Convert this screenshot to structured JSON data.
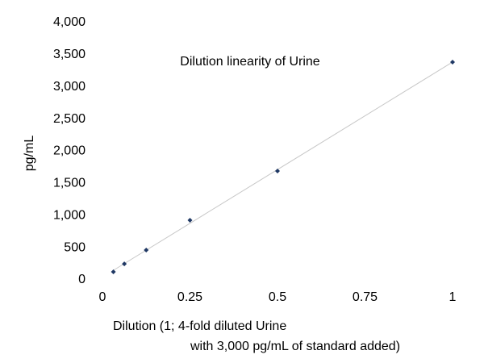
{
  "chart_data": {
    "type": "scatter",
    "title": "Dilution linearity of Urine",
    "xlabel": [
      "Dilution (1; 4-fold diluted Urine",
      "with 3,000 pg/mL of standard added)"
    ],
    "ylabel": "pg/mL",
    "x": [
      0.03125,
      0.0625,
      0.125,
      0.25,
      0.5,
      1
    ],
    "values": [
      125,
      250,
      464,
      928,
      1693,
      3386
    ],
    "color": "#1f3864",
    "trendline": "linear",
    "trendline_color": "#c8c8c8",
    "xlim": [
      0,
      1
    ],
    "xticks": [
      0,
      0.25,
      0.5,
      0.75,
      1
    ],
    "ylim": [
      0,
      4000
    ],
    "yticks": [
      0,
      500,
      {
        "value": 1000,
        "label": "1,000"
      },
      {
        "value": 1500,
        "label": "1,500"
      },
      {
        "value": 2000,
        "label": "2,000"
      },
      {
        "value": 2500,
        "label": "2,500"
      },
      {
        "value": 3000,
        "label": "3,000"
      },
      {
        "value": 3500,
        "label": "3,500"
      },
      {
        "value": 4000,
        "label": "4,000"
      }
    ],
    "grid": false
  }
}
